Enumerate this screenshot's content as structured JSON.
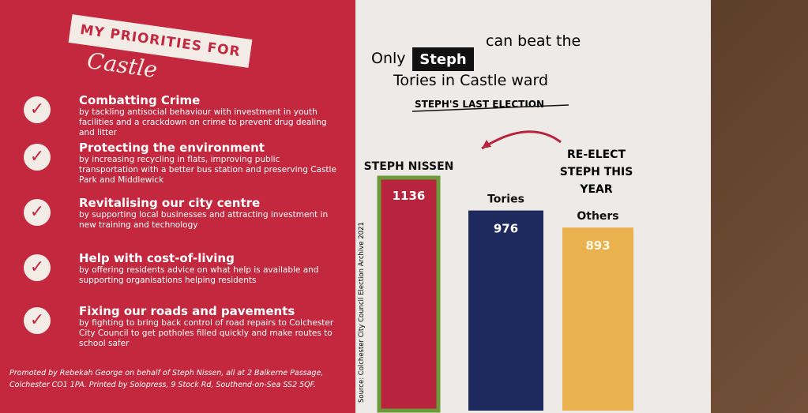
{
  "left_panel": {
    "heading": "MY PRIORITIES FOR",
    "ward": "Castle",
    "items": [
      {
        "title": "Combatting Crime",
        "text": "by tackling antisocial behaviour with investment in youth facilities and a crackdown on crime to prevent drug dealing and litter"
      },
      {
        "title": "Protecting the environment",
        "text": "by increasing recycling in flats, improving public transportation with a better bus station and preserving Castle Park and Middlewick"
      },
      {
        "title": "Revitalising our city centre",
        "text": "by supporting local businesses and attracting investment in new training and technology"
      },
      {
        "title": "Help with cost-of-living",
        "text": "by offering residents advice on what help is available and supporting organisations helping residents"
      },
      {
        "title": "Fixing our roads and pavements",
        "text": "by fighting to bring back control of road repairs to Colchester City Council to get potholes filled quickly and make routes to school safer"
      }
    ],
    "imprint": "Promoted by Rebekah George on behalf of Steph Nissen, all at 2 Balkerne Passage, Colchester CO1 1PA. Printed by Solopress, 9 Stock Rd, Southend-on-Sea SS2 5QF."
  },
  "chart_data": {
    "type": "bar",
    "title_parts": [
      "Only",
      "Steph",
      "can beat the",
      "Tories in Castle ward"
    ],
    "subtitle": "STEPH'S LAST ELECTION",
    "categories": [
      "STEPH NISSEN",
      "Tories",
      "Others"
    ],
    "values": [
      1136,
      976,
      893
    ],
    "colors": [
      "#b8243d",
      "#1e2a5e",
      "#e9b24f"
    ],
    "highlight_color": "#6a9a3a",
    "annotation": "RE-ELECT STEPH THIS YEAR",
    "source": "Source: Colchester City Council Election Archive 2021"
  }
}
